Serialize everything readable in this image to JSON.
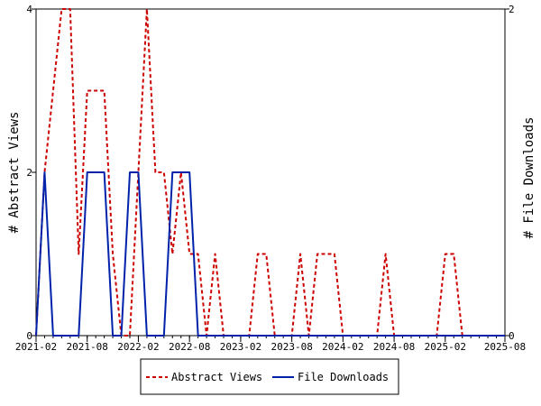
{
  "chart_data": {
    "type": "line",
    "x_labels": [
      "2021-02",
      "2021-08",
      "2022-02",
      "2022-08",
      "2023-02",
      "2023-08",
      "2024-02",
      "2024-08",
      "2025-02",
      "2025-08"
    ],
    "y_left": {
      "label": "# Abstract Views",
      "range": [
        0,
        4
      ],
      "ticks": [
        0,
        2,
        4
      ]
    },
    "y_right": {
      "label": "# File Downloads",
      "range": [
        0,
        2
      ],
      "ticks": [
        0,
        2
      ]
    },
    "series": [
      {
        "name": "Abstract Views",
        "axis": "left",
        "color": "#cc0000",
        "style": "dashed",
        "points": [
          [
            0,
            0
          ],
          [
            1,
            2
          ],
          [
            2,
            3
          ],
          [
            3,
            4
          ],
          [
            4,
            4
          ],
          [
            5,
            1
          ],
          [
            6,
            3
          ],
          [
            7,
            3
          ],
          [
            8,
            3
          ],
          [
            9,
            1
          ],
          [
            10,
            0
          ],
          [
            11,
            0
          ],
          [
            12,
            2
          ],
          [
            13,
            4
          ],
          [
            14,
            2
          ],
          [
            15,
            2
          ],
          [
            16,
            1
          ],
          [
            17,
            2
          ],
          [
            18,
            1
          ],
          [
            19,
            1
          ],
          [
            20,
            0
          ],
          [
            21,
            1
          ],
          [
            22,
            0
          ],
          [
            23,
            0
          ],
          [
            24,
            0
          ],
          [
            25,
            0
          ],
          [
            26,
            1
          ],
          [
            27,
            1
          ],
          [
            28,
            0
          ],
          [
            29,
            0
          ],
          [
            30,
            0
          ],
          [
            31,
            1
          ],
          [
            32,
            0
          ],
          [
            33,
            1
          ],
          [
            34,
            1
          ],
          [
            35,
            1
          ],
          [
            36,
            0
          ],
          [
            37,
            0
          ],
          [
            38,
            0
          ],
          [
            39,
            0
          ],
          [
            40,
            0
          ],
          [
            41,
            1
          ],
          [
            42,
            0
          ],
          [
            43,
            0
          ],
          [
            44,
            0
          ],
          [
            45,
            0
          ],
          [
            46,
            0
          ],
          [
            47,
            0
          ],
          [
            48,
            1
          ],
          [
            49,
            1
          ],
          [
            50,
            0
          ],
          [
            51,
            0
          ],
          [
            52,
            0
          ],
          [
            53,
            0
          ],
          [
            54,
            0
          ],
          [
            55,
            0
          ]
        ]
      },
      {
        "name": "File Downloads",
        "axis": "right",
        "color": "#0022aa",
        "style": "solid",
        "points": [
          [
            0,
            0
          ],
          [
            1,
            1
          ],
          [
            2,
            0
          ],
          [
            3,
            0
          ],
          [
            4,
            0
          ],
          [
            5,
            0
          ],
          [
            6,
            1
          ],
          [
            7,
            1
          ],
          [
            8,
            1
          ],
          [
            9,
            0
          ],
          [
            10,
            0
          ],
          [
            11,
            1
          ],
          [
            12,
            1
          ],
          [
            13,
            0
          ],
          [
            14,
            0
          ],
          [
            15,
            0
          ],
          [
            16,
            1
          ],
          [
            17,
            1
          ],
          [
            18,
            1
          ],
          [
            19,
            0
          ],
          [
            20,
            0
          ],
          [
            21,
            0
          ],
          [
            22,
            0
          ],
          [
            23,
            0
          ],
          [
            24,
            0
          ],
          [
            25,
            0
          ],
          [
            26,
            0
          ],
          [
            27,
            0
          ],
          [
            28,
            0
          ],
          [
            29,
            0
          ],
          [
            30,
            0
          ],
          [
            31,
            0
          ],
          [
            32,
            0
          ],
          [
            33,
            0
          ],
          [
            34,
            0
          ],
          [
            35,
            0
          ],
          [
            36,
            0
          ],
          [
            37,
            0
          ],
          [
            38,
            0
          ],
          [
            39,
            0
          ],
          [
            40,
            0
          ],
          [
            41,
            0
          ],
          [
            42,
            0
          ],
          [
            43,
            0
          ],
          [
            44,
            0
          ],
          [
            45,
            0
          ],
          [
            46,
            0
          ],
          [
            47,
            0
          ],
          [
            48,
            0
          ],
          [
            49,
            0
          ],
          [
            50,
            0
          ],
          [
            51,
            0
          ],
          [
            52,
            0
          ],
          [
            53,
            0
          ],
          [
            54,
            0
          ],
          [
            55,
            0
          ]
        ]
      }
    ],
    "legend": [
      "Abstract Views",
      "File Downloads"
    ]
  }
}
